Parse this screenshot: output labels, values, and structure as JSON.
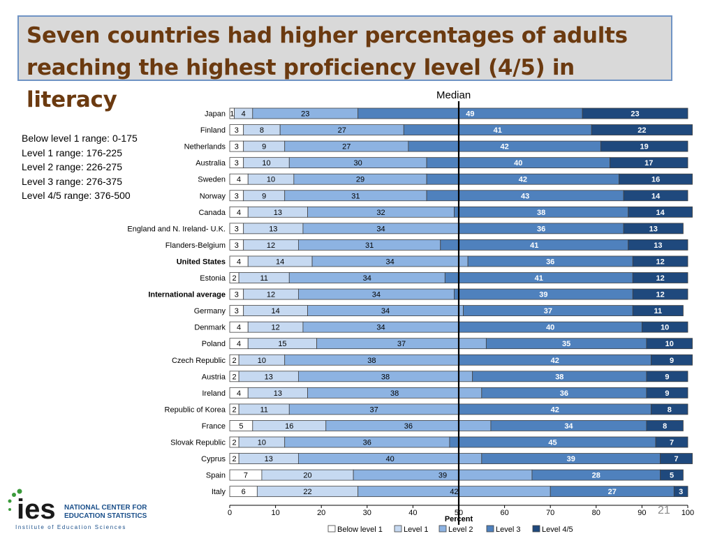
{
  "slide": {
    "title": "Seven countries had higher percentages of adults reaching the highest proficiency level (4/5) in literacy",
    "median_label": "Median",
    "page_number": "21",
    "ranges": [
      "Below level 1 range:  0-175",
      "Level  1 range: 176-225",
      "Level 2 range: 226-275",
      "Level 3 range: 276-375",
      "Level 4/5 range: 376-500"
    ],
    "logo": {
      "mark": "ies",
      "line1": "NATIONAL CENTER FOR",
      "line2": "EDUCATION STATISTICS",
      "line3": "Institute of Education Sciences"
    }
  },
  "colors": {
    "title": "#6b3a10",
    "title_bg": "#d9d9d9",
    "below_level_1": "#ffffff",
    "level_1": "#c6d9f1",
    "level_2": "#8db3e2",
    "level_3": "#4f81bd",
    "level_45": "#1f497d"
  },
  "chart_data": {
    "type": "bar",
    "orientation": "horizontal",
    "stacked": true,
    "xlabel": "Percent",
    "xlim": [
      0,
      100
    ],
    "xticks": [
      "0",
      "10",
      "20",
      "30",
      "40",
      "50",
      "60",
      "70",
      "80",
      "90",
      "100"
    ],
    "median_line_at": 50,
    "grid": false,
    "legend_position": "bottom",
    "categories": [
      "Japan",
      "Finland",
      "Netherlands",
      "Australia",
      "Sweden",
      "Norway",
      "Canada",
      "England and N. Ireland- U.K.",
      "Flanders-Belgium",
      "United States",
      "Estonia",
      "International average",
      "Germany",
      "Denmark",
      "Poland",
      "Czech Republic",
      "Austria",
      "Ireland",
      "Republic of Korea",
      "France",
      "Slovak Republic",
      "Cyprus",
      "Spain",
      "Italy"
    ],
    "bold_categories": [
      "United States",
      "International average"
    ],
    "series": [
      {
        "name": "Below level 1",
        "values": [
          1,
          3,
          3,
          3,
          4,
          3,
          4,
          3,
          3,
          4,
          2,
          3,
          3,
          4,
          4,
          2,
          2,
          4,
          2,
          5,
          2,
          2,
          7,
          6
        ]
      },
      {
        "name": "Level 1",
        "values": [
          4,
          8,
          9,
          10,
          10,
          9,
          13,
          13,
          12,
          14,
          11,
          12,
          14,
          12,
          15,
          10,
          13,
          13,
          11,
          16,
          10,
          13,
          20,
          22
        ]
      },
      {
        "name": "Level 2",
        "values": [
          23,
          27,
          27,
          30,
          29,
          31,
          32,
          34,
          31,
          34,
          34,
          34,
          34,
          34,
          37,
          38,
          38,
          38,
          37,
          36,
          36,
          40,
          39,
          42
        ]
      },
      {
        "name": "Level 3",
        "values": [
          49,
          41,
          42,
          40,
          42,
          43,
          38,
          36,
          41,
          36,
          41,
          39,
          37,
          40,
          35,
          42,
          38,
          36,
          42,
          34,
          45,
          39,
          28,
          27
        ]
      },
      {
        "name": "Level 4/5",
        "values": [
          23,
          22,
          19,
          17,
          16,
          14,
          14,
          13,
          13,
          12,
          12,
          12,
          11,
          10,
          10,
          9,
          9,
          9,
          8,
          8,
          7,
          7,
          5,
          3
        ]
      }
    ]
  }
}
